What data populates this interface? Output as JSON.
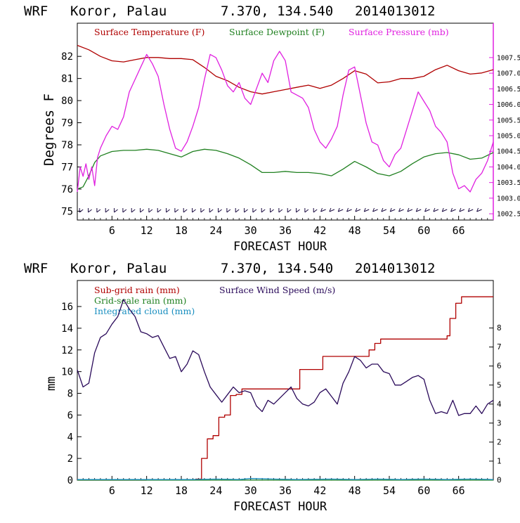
{
  "header": {
    "model": "WRF",
    "location": "Koror, Palau",
    "coords": "7.370, 134.540",
    "run": "2014013012"
  },
  "colors": {
    "temperature": "#b00000",
    "dewpoint": "#208020",
    "pressure": "#e020e0",
    "subgrid_rain": "#b00000",
    "grid_rain": "#208020",
    "cloud": "#1a8fc0",
    "wind_speed": "#2a0a5a",
    "axis": "#000000"
  },
  "chart_data": [
    {
      "type": "line",
      "xlabel": "FORECAST HOUR",
      "ylabel": "Degrees F",
      "xlim": [
        0,
        72
      ],
      "xticks": [
        6,
        12,
        18,
        24,
        30,
        36,
        42,
        48,
        54,
        60,
        66
      ],
      "xtick_labels": [
        "6",
        "12",
        "18",
        "24",
        "30",
        "36",
        "42",
        "48",
        "54",
        "60",
        "66"
      ],
      "ylim": [
        74.6,
        83.5
      ],
      "yticks": [
        75,
        76,
        77,
        78,
        79,
        80,
        81,
        82
      ],
      "ytick_labels": [
        "75",
        "76",
        "77",
        "78",
        "79",
        "80",
        "81",
        "82"
      ],
      "y2lim": [
        1002.3,
        1008.6
      ],
      "y2ticks": [
        1002.5,
        1003.0,
        1003.5,
        1004.0,
        1004.5,
        1005.0,
        1005.5,
        1006.0,
        1006.5,
        1007.0,
        1007.5
      ],
      "y2tick_labels": [
        "1002.5",
        "1003.0",
        "1003.5",
        "1004.0",
        "1004.5",
        "1005.0",
        "1005.5",
        "1006.0",
        "1006.5",
        "1007.0",
        "1007.5"
      ],
      "legend": [
        "Surface Temperature (F)",
        "Surface Dewpoint (F)",
        "Surface Pressure (mb)"
      ],
      "series": [
        {
          "name": "Surface Temperature (F)",
          "axis": "left",
          "x": [
            0,
            2,
            4,
            6,
            8,
            10,
            12,
            14,
            16,
            18,
            20,
            22,
            24,
            26,
            28,
            30,
            32,
            34,
            36,
            38,
            40,
            42,
            44,
            46,
            48,
            50,
            52,
            54,
            56,
            58,
            60,
            62,
            64,
            66,
            68,
            70,
            72
          ],
          "y": [
            82.5,
            82.3,
            82.0,
            81.8,
            81.75,
            81.85,
            81.95,
            81.95,
            81.9,
            81.9,
            81.85,
            81.5,
            81.1,
            80.9,
            80.6,
            80.4,
            80.3,
            80.4,
            80.5,
            80.6,
            80.7,
            80.55,
            80.7,
            81.0,
            81.35,
            81.2,
            80.8,
            80.85,
            81.0,
            81.0,
            81.1,
            81.4,
            81.6,
            81.35,
            81.2,
            81.25,
            81.4
          ]
        },
        {
          "name": "Surface Dewpoint (F)",
          "axis": "left",
          "x": [
            0,
            1,
            2,
            3,
            4,
            6,
            8,
            10,
            12,
            14,
            16,
            18,
            20,
            22,
            24,
            26,
            28,
            30,
            32,
            34,
            36,
            38,
            40,
            42,
            44,
            46,
            48,
            50,
            52,
            54,
            56,
            58,
            60,
            62,
            64,
            66,
            68,
            70,
            72
          ],
          "y": [
            76.0,
            76.1,
            76.6,
            77.2,
            77.5,
            77.7,
            77.75,
            77.75,
            77.8,
            77.75,
            77.6,
            77.45,
            77.7,
            77.8,
            77.75,
            77.6,
            77.4,
            77.1,
            76.75,
            76.75,
            76.8,
            76.75,
            76.75,
            76.7,
            76.6,
            76.9,
            77.25,
            77.0,
            76.7,
            76.6,
            76.8,
            77.15,
            77.45,
            77.6,
            77.65,
            77.55,
            77.35,
            77.4,
            77.65
          ]
        },
        {
          "name": "Surface Pressure (mb)",
          "axis": "right",
          "x": [
            0,
            0.5,
            1,
            1.5,
            2,
            2.5,
            3,
            3.5,
            4,
            5,
            6,
            7,
            8,
            9,
            10,
            11,
            12,
            13,
            14,
            15,
            16,
            17,
            18,
            19,
            20,
            21,
            22,
            23,
            24,
            25,
            26,
            27,
            28,
            29,
            30,
            31,
            32,
            33,
            34,
            35,
            36,
            37,
            38,
            39,
            40,
            41,
            42,
            43,
            44,
            45,
            46,
            47,
            48,
            49,
            50,
            51,
            52,
            53,
            54,
            55,
            56,
            57,
            58,
            59,
            60,
            61,
            62,
            63,
            64,
            65,
            66,
            67,
            68,
            69,
            70,
            71,
            72
          ],
          "y": [
            1003.2,
            1004.0,
            1003.7,
            1004.1,
            1003.6,
            1004.0,
            1003.4,
            1004.3,
            1004.6,
            1005.0,
            1005.3,
            1005.2,
            1005.6,
            1006.4,
            1006.8,
            1007.2,
            1007.6,
            1007.3,
            1006.9,
            1006.0,
            1005.2,
            1004.6,
            1004.5,
            1004.8,
            1005.3,
            1005.9,
            1006.8,
            1007.6,
            1007.5,
            1007.1,
            1006.6,
            1006.4,
            1006.7,
            1006.2,
            1006.0,
            1006.5,
            1007.0,
            1006.7,
            1007.4,
            1007.7,
            1007.4,
            1006.4,
            1006.3,
            1006.2,
            1005.9,
            1005.2,
            1004.8,
            1004.6,
            1004.9,
            1005.3,
            1006.3,
            1007.1,
            1007.2,
            1006.3,
            1005.4,
            1004.8,
            1004.7,
            1004.2,
            1004.0,
            1004.4,
            1004.6,
            1005.2,
            1005.8,
            1006.4,
            1006.1,
            1005.8,
            1005.3,
            1005.1,
            1004.8,
            1003.8,
            1003.3,
            1003.4,
            1003.2,
            1003.6,
            1003.8,
            1004.2,
            1004.8
          ]
        }
      ]
    },
    {
      "type": "line",
      "xlabel": "FORECAST HOUR",
      "ylabel": "mm",
      "xlim": [
        0,
        72
      ],
      "xticks": [
        6,
        12,
        18,
        24,
        30,
        36,
        42,
        48,
        54,
        60,
        66
      ],
      "xtick_labels": [
        "6",
        "12",
        "18",
        "24",
        "30",
        "36",
        "42",
        "48",
        "54",
        "60",
        "66"
      ],
      "ylim": [
        0,
        18.4
      ],
      "yticks": [
        0,
        2,
        4,
        6,
        8,
        10,
        12,
        14,
        16
      ],
      "ytick_labels": [
        "0",
        "2",
        "4",
        "6",
        "8",
        "10",
        "12",
        "14",
        "16"
      ],
      "y2lim": [
        0,
        10.5
      ],
      "y2ticks": [
        0,
        1,
        2,
        3,
        4,
        5,
        6,
        7,
        8
      ],
      "y2tick_labels": [
        "0",
        "1",
        "2",
        "3",
        "4",
        "5",
        "6",
        "7",
        "8"
      ],
      "legend": [
        "Sub-grid rain (mm)",
        "Grid-scale rain (mm)",
        "Integrated cloud (mm)",
        "Surface Wind Speed (m/s)"
      ],
      "series": [
        {
          "name": "Sub-grid rain (mm)",
          "axis": "left",
          "x": [
            0,
            12,
            20.5,
            21.5,
            22.5,
            23.5,
            24.5,
            25.5,
            26.5,
            27.5,
            28.5,
            37.5,
            38.5,
            41.5,
            42.5,
            49.5,
            50.5,
            51.5,
            52.5,
            63,
            64,
            64.5,
            65.5,
            66.5,
            72
          ],
          "y": [
            0,
            0.05,
            0.1,
            2.0,
            3.8,
            4.1,
            5.8,
            6.0,
            7.8,
            7.9,
            8.4,
            8.4,
            10.2,
            10.2,
            11.4,
            11.4,
            12.0,
            12.6,
            13.0,
            13.0,
            13.3,
            14.9,
            16.3,
            16.9,
            16.9
          ]
        },
        {
          "name": "Grid-scale rain (mm)",
          "axis": "left",
          "x": [
            0,
            72
          ],
          "y": [
            0,
            0
          ]
        },
        {
          "name": "Integrated cloud (mm)",
          "axis": "left",
          "x": [
            0,
            20,
            24,
            28,
            30,
            34,
            38,
            44,
            48,
            52,
            56,
            60,
            64,
            68,
            72
          ],
          "y": [
            0.05,
            0.05,
            0.1,
            0.05,
            0.15,
            0.1,
            0.05,
            0.1,
            0.05,
            0.1,
            0.05,
            0.1,
            0.05,
            0.1,
            0.05
          ]
        },
        {
          "name": "Surface Wind Speed (m/s)",
          "axis": "right",
          "x": [
            0,
            1,
            2,
            3,
            4,
            5,
            6,
            7,
            8,
            9,
            10,
            11,
            12,
            13,
            14,
            15,
            16,
            17,
            18,
            19,
            20,
            21,
            22,
            23,
            24,
            25,
            26,
            27,
            28,
            29,
            30,
            31,
            32,
            33,
            34,
            35,
            36,
            37,
            38,
            39,
            40,
            41,
            42,
            43,
            44,
            45,
            46,
            47,
            48,
            49,
            50,
            51,
            52,
            53,
            54,
            55,
            56,
            57,
            58,
            59,
            60,
            61,
            62,
            63,
            64,
            65,
            66,
            67,
            68,
            69,
            70,
            71,
            72
          ],
          "y": [
            5.8,
            4.9,
            5.1,
            6.7,
            7.5,
            7.7,
            8.2,
            8.6,
            9.5,
            9.0,
            8.6,
            7.8,
            7.7,
            7.5,
            7.6,
            7.0,
            6.4,
            6.5,
            5.7,
            6.1,
            6.8,
            6.6,
            5.7,
            4.9,
            4.5,
            4.1,
            4.5,
            4.9,
            4.6,
            4.7,
            4.6,
            3.9,
            3.6,
            4.2,
            4.0,
            4.3,
            4.6,
            4.9,
            4.3,
            4.0,
            3.9,
            4.1,
            4.6,
            4.8,
            4.4,
            4.0,
            5.1,
            5.7,
            6.5,
            6.3,
            5.9,
            6.1,
            6.1,
            5.7,
            5.6,
            5.0,
            5.0,
            5.2,
            5.4,
            5.5,
            5.3,
            4.2,
            3.5,
            3.6,
            3.5,
            4.2,
            3.4,
            3.5,
            3.5,
            3.9,
            3.5,
            4.0,
            4.2
          ]
        }
      ]
    }
  ]
}
